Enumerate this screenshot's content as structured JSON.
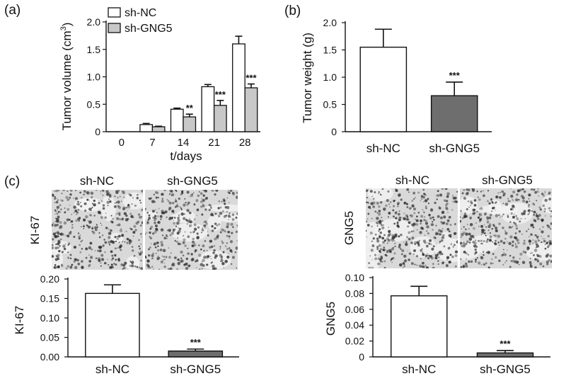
{
  "panels": {
    "a": "(a)",
    "b": "(b)",
    "c": "(c)"
  },
  "colors": {
    "sh_nc": "#ffffff",
    "sh_gng5_a": "#c8c8c8",
    "sh_gng5_b": "#6e6e6e",
    "sh_gng5_c": "#6e6e6e",
    "axis": "#111111",
    "tissue_base": "#d9d9d9",
    "tissue_nuclei": "#2a2a2a"
  },
  "micrographs": {
    "ki67_row_label": "KI-67",
    "gng5_row_label": "GNG5",
    "ki67_headers": [
      "sh-NC",
      "sh-GNG5"
    ],
    "gng5_headers": [
      "sh-NC",
      "sh-GNG5"
    ]
  },
  "chart_data": [
    {
      "id": "a",
      "type": "bar",
      "ylabel_parts": [
        "Tumor volume (cm",
        "3",
        ")"
      ],
      "xlabel": "t/days",
      "categories": [
        "0",
        "7",
        "14",
        "21",
        "28"
      ],
      "series": [
        {
          "name": "sh-NC",
          "values": [
            0,
            0.13,
            0.41,
            0.82,
            1.6
          ],
          "errors": [
            0,
            0.02,
            0.02,
            0.04,
            0.14
          ]
        },
        {
          "name": "sh-GNG5",
          "values": [
            0,
            0.09,
            0.27,
            0.48,
            0.8
          ],
          "errors": [
            0,
            0.01,
            0.05,
            0.09,
            0.07
          ]
        }
      ],
      "significance": [
        "",
        "",
        "**",
        "***",
        "***"
      ],
      "ylim": [
        0,
        2.0
      ],
      "yticks": [
        "0",
        "0.5",
        "1.0",
        "1.5",
        "2.0"
      ],
      "legend": "top-left"
    },
    {
      "id": "b",
      "type": "bar",
      "ylabel": "Tumor weight (g)",
      "categories": [
        "sh-NC",
        "sh-GNG5"
      ],
      "values": [
        1.55,
        0.66
      ],
      "errors": [
        0.33,
        0.25
      ],
      "significance": [
        "",
        "***"
      ],
      "ylim": [
        0,
        2.0
      ],
      "yticks": [
        "0",
        "0.5",
        "1.0",
        "1.5",
        "2.0"
      ]
    },
    {
      "id": "c-ki67",
      "type": "bar",
      "ylabel": "KI-67",
      "categories": [
        "sh-NC",
        "sh-GNG5"
      ],
      "values": [
        0.163,
        0.015
      ],
      "errors": [
        0.022,
        0.005
      ],
      "significance": [
        "",
        "***"
      ],
      "ylim": [
        0,
        0.2
      ],
      "yticks": [
        "0.00",
        "0.05",
        "0.10",
        "0.15",
        "0.20"
      ]
    },
    {
      "id": "c-gng5",
      "type": "bar",
      "ylabel": "GNG5",
      "categories": [
        "sh-NC",
        "sh-GNG5"
      ],
      "values": [
        0.077,
        0.005
      ],
      "errors": [
        0.012,
        0.003
      ],
      "significance": [
        "",
        "***"
      ],
      "ylim": [
        0,
        0.1
      ],
      "yticks": [
        "0",
        "0.02",
        "0.04",
        "0.06",
        "0.08",
        "0.10"
      ]
    }
  ]
}
